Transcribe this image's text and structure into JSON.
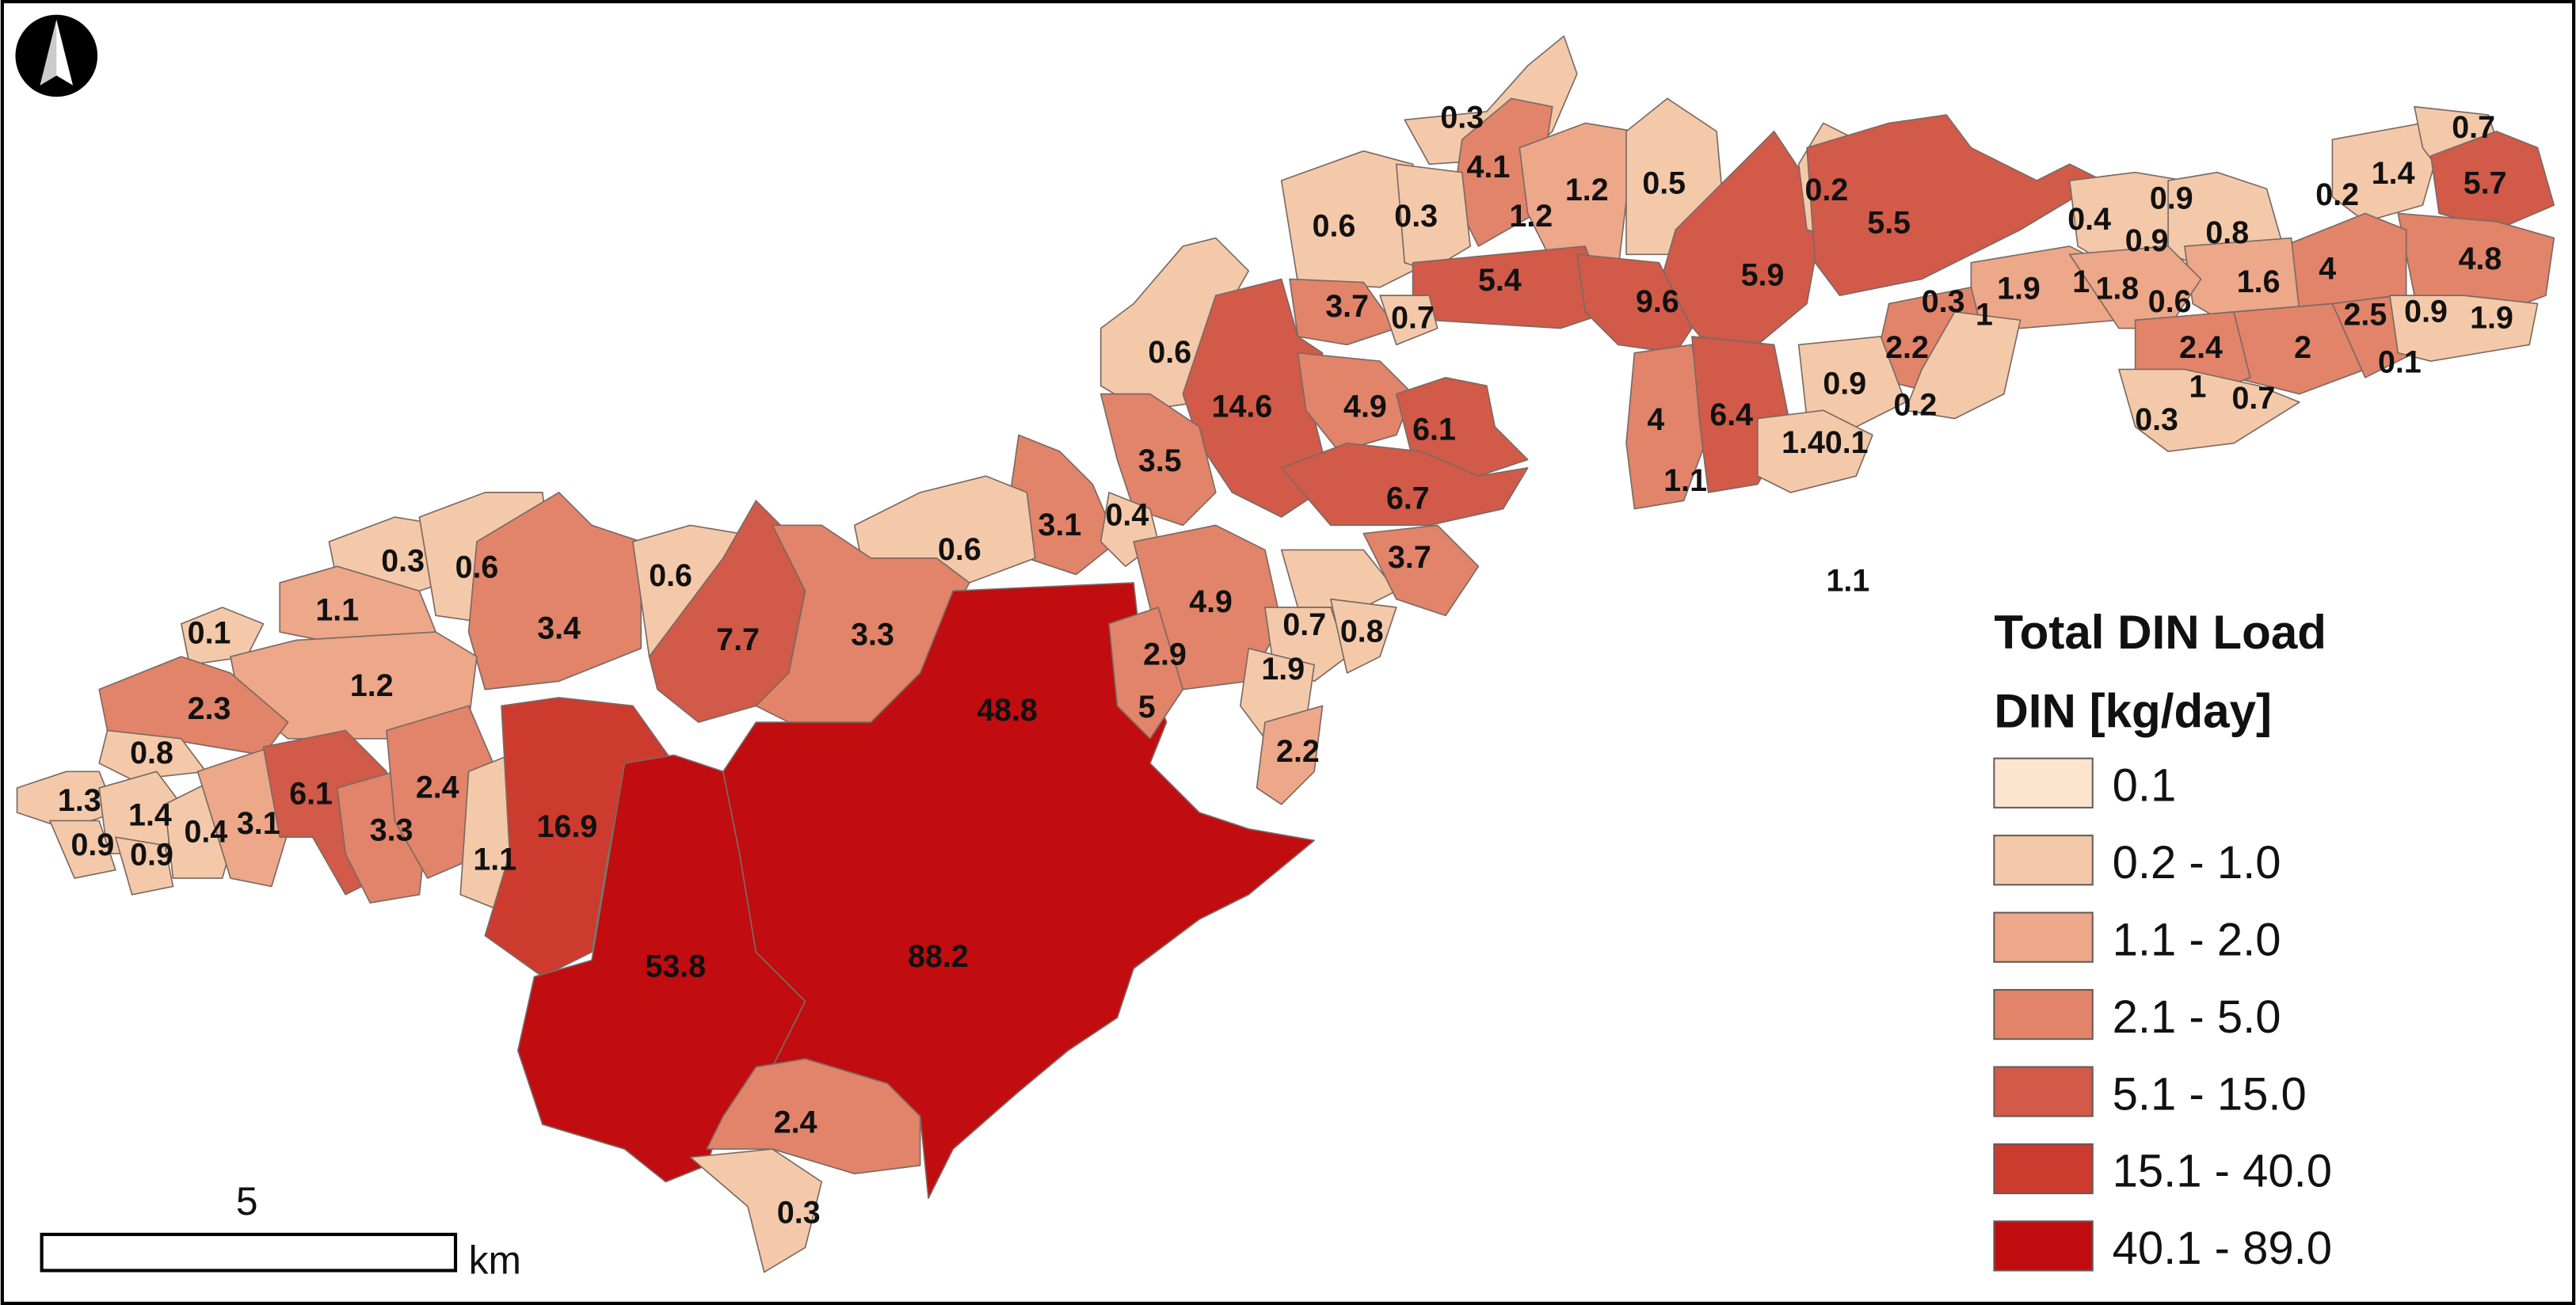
{
  "legend": {
    "title": "Total DIN Load",
    "subtitle": "DIN [kg/day]",
    "classes": [
      {
        "label": "0.1",
        "color": "#fde4cf"
      },
      {
        "label": "0.2 - 1.0",
        "color": "#f4c9a9"
      },
      {
        "label": "1.1 - 2.0",
        "color": "#eda789"
      },
      {
        "label": "2.1 - 5.0",
        "color": "#e1846a"
      },
      {
        "label": "5.1 - 15.0",
        "color": "#d25a48"
      },
      {
        "label": "15.1 - 40.0",
        "color": "#cc3b2d"
      },
      {
        "label": "40.1 - 89.0",
        "color": "#c10c10"
      }
    ]
  },
  "scale_bar": {
    "value": "5",
    "unit": "km"
  },
  "north_arrow": {
    "icon": "north-arrow-icon"
  },
  "load_labels": [
    "0.3",
    "4.1",
    "1.2",
    "1.2",
    "0.5",
    "0.2",
    "5.5",
    "0.7",
    "5.7",
    "1.4",
    "0.2",
    "0.9",
    "0.8",
    "0.4",
    "0.6",
    "0.3",
    "5.4",
    "9.6",
    "5.9",
    "0.9",
    "1.6",
    "4",
    "4.8",
    "3.7",
    "0.7",
    "0.3",
    "1.9",
    "1",
    "1.8",
    "0.6",
    "1",
    "2.2",
    "2.4",
    "2",
    "2.5",
    "0.9",
    "1.9",
    "0.1",
    "0.3",
    "1",
    "0.7",
    "0.6",
    "14.6",
    "4.9",
    "6.1",
    "4",
    "6.4",
    "0.9",
    "0.2",
    "1.40.1",
    "1.1",
    "3.5",
    "6.7",
    "0.6",
    "3.1",
    "0.4",
    "0.3",
    "0.6",
    "0.6",
    "1.1",
    "3.7",
    "1.1",
    "0.1",
    "3.4",
    "7.7",
    "3.3",
    "4.9",
    "0.7",
    "0.8",
    "1.2",
    "2.9",
    "1.9",
    "48.8",
    "2.3",
    "5",
    "0.8",
    "2.2",
    "1.3",
    "1.4",
    "0.9",
    "0.9",
    "0.4",
    "3.1",
    "6.1",
    "3.3",
    "2.4",
    "1.1",
    "16.9",
    "53.8",
    "88.2",
    "2.4",
    "0.3"
  ]
}
